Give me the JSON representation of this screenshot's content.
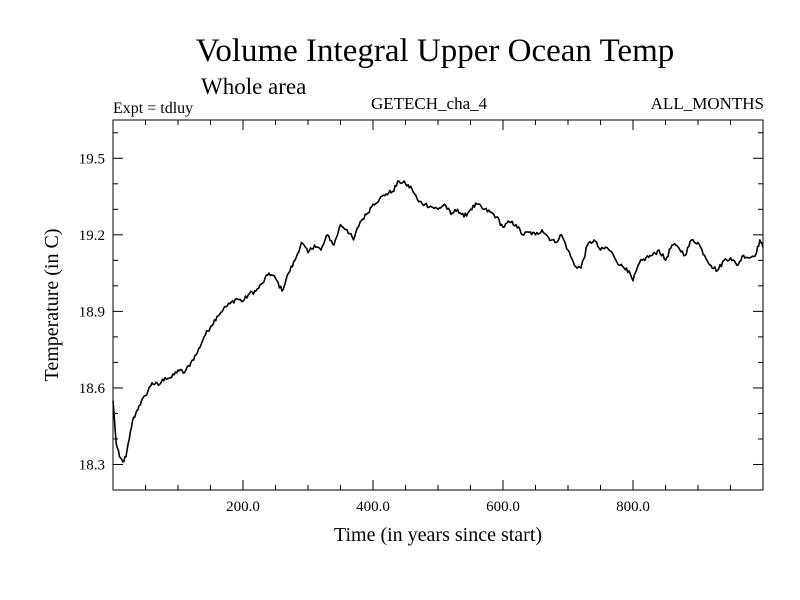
{
  "header": {
    "title": "Volume Integral Upper Ocean Temp",
    "subtitle": "Whole area",
    "expt": "Expt = tdluy",
    "model": "GETECH_cha_4",
    "months": "ALL_MONTHS"
  },
  "chart_data": {
    "type": "line",
    "xlabel": "Time (in years since start)",
    "ylabel": "Temperature (in C)",
    "xlim": [
      0,
      1000
    ],
    "ylim": [
      18.2,
      19.65
    ],
    "xticks": [
      200,
      400,
      600,
      800
    ],
    "xtick_labels": [
      "200.0",
      "400.0",
      "600.0",
      "800.0"
    ],
    "yticks": [
      18.3,
      18.6,
      18.9,
      19.2,
      19.5
    ],
    "ytick_labels": [
      "18.3",
      "18.6",
      "18.9",
      "19.2",
      "19.5"
    ],
    "grid": false,
    "legend": false,
    "series": [
      {
        "color": "#000000",
        "x": [
          0,
          5,
          10,
          15,
          20,
          25,
          30,
          35,
          40,
          50,
          60,
          70,
          80,
          90,
          100,
          110,
          120,
          130,
          140,
          150,
          160,
          170,
          180,
          190,
          200,
          210,
          220,
          230,
          240,
          250,
          260,
          270,
          280,
          290,
          300,
          310,
          320,
          330,
          340,
          350,
          360,
          370,
          380,
          390,
          400,
          410,
          420,
          430,
          440,
          450,
          460,
          470,
          480,
          490,
          500,
          510,
          520,
          530,
          540,
          550,
          560,
          570,
          580,
          590,
          600,
          610,
          620,
          630,
          640,
          650,
          660,
          670,
          680,
          690,
          700,
          710,
          720,
          730,
          740,
          750,
          760,
          770,
          780,
          790,
          800,
          810,
          820,
          830,
          840,
          850,
          860,
          870,
          880,
          890,
          900,
          910,
          920,
          930,
          940,
          950,
          960,
          970,
          980,
          990,
          995,
          1000
        ],
        "y": [
          18.55,
          18.38,
          18.33,
          18.31,
          18.33,
          18.4,
          18.47,
          18.5,
          18.53,
          18.57,
          18.62,
          18.61,
          18.64,
          18.64,
          18.67,
          18.66,
          18.7,
          18.74,
          18.8,
          18.84,
          18.88,
          18.91,
          18.93,
          18.95,
          18.94,
          18.97,
          18.98,
          19.01,
          19.05,
          19.03,
          18.98,
          19.05,
          19.1,
          19.17,
          19.13,
          19.16,
          19.14,
          19.2,
          19.16,
          19.24,
          19.22,
          19.18,
          19.25,
          19.28,
          19.32,
          19.34,
          19.36,
          19.37,
          19.41,
          19.4,
          19.38,
          19.33,
          19.32,
          19.31,
          19.3,
          19.32,
          19.28,
          19.3,
          19.27,
          19.3,
          19.32,
          19.3,
          19.29,
          19.27,
          19.23,
          19.25,
          19.24,
          19.2,
          19.21,
          19.2,
          19.22,
          19.19,
          19.17,
          19.2,
          19.14,
          19.08,
          19.07,
          19.16,
          19.18,
          19.14,
          19.15,
          19.12,
          19.08,
          19.07,
          19.02,
          19.09,
          19.11,
          19.12,
          19.14,
          19.1,
          19.16,
          19.15,
          19.12,
          19.18,
          19.17,
          19.12,
          19.08,
          19.06,
          19.1,
          19.11,
          19.08,
          19.12,
          19.11,
          19.13,
          19.18,
          19.15
        ]
      }
    ]
  }
}
